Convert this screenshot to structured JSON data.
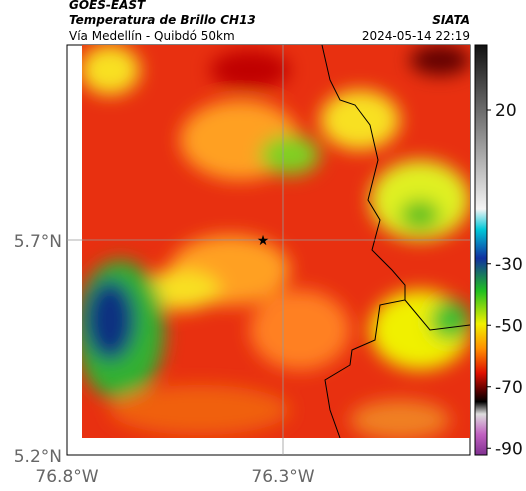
{
  "header": {
    "title": "GOES-EAST",
    "subtitle": "Temperatura de Brillo CH13",
    "location": "Vía Medellín - Quibdó 50km",
    "source": "SIATA",
    "datetime": "2024-05-14 22:19"
  },
  "axes": {
    "y_labels": [
      "5.7°N",
      "5.2°N"
    ],
    "x_labels": [
      "76.8°W",
      "76.3°W"
    ]
  },
  "colorbar": {
    "ticks": [
      20,
      -30,
      -50,
      -70,
      -90
    ]
  }
}
